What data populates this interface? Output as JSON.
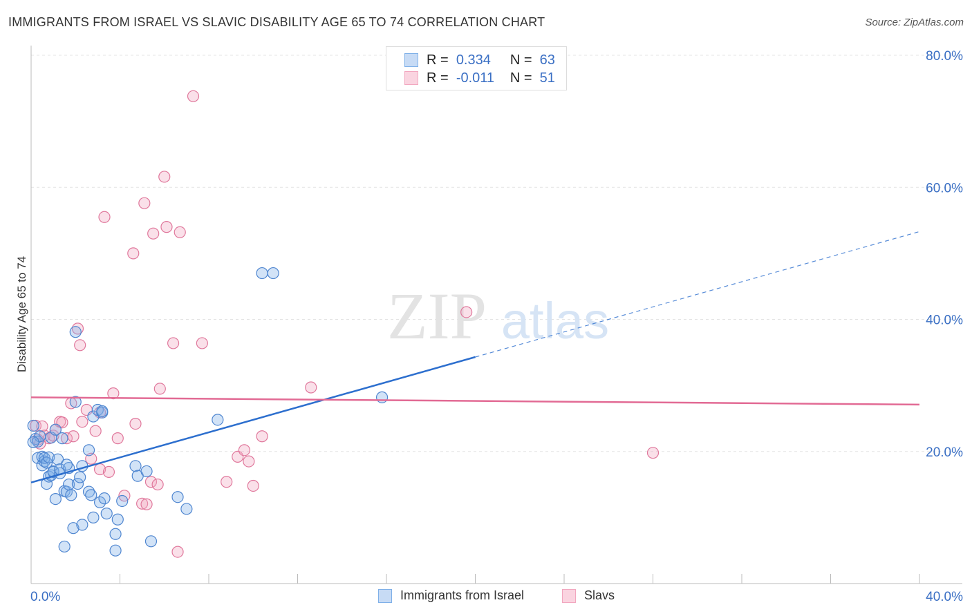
{
  "header": {
    "title": "IMMIGRANTS FROM ISRAEL VS SLAVIC DISABILITY AGE 65 TO 74 CORRELATION CHART",
    "source": "Source: ZipAtlas.com"
  },
  "watermark": {
    "zip": "ZIP",
    "atlas": "atlas"
  },
  "legend_top": [
    {
      "r_label": "R =",
      "r_value": "0.334",
      "n_label": "N =",
      "n_value": "63",
      "color": "#7fb0e8"
    },
    {
      "r_label": "R =",
      "r_value": "-0.011",
      "n_label": "N =",
      "n_value": "51",
      "color": "#f2a7bf"
    }
  ],
  "legend_bottom": [
    {
      "label": "Immigrants from Israel",
      "color": "#7fb0e8"
    },
    {
      "label": "Slavs",
      "color": "#f2a7bf"
    }
  ],
  "chart_data": {
    "type": "scatter",
    "title": "IMMIGRANTS FROM ISRAEL VS SLAVIC DISABILITY AGE 65 TO 74 CORRELATION CHART",
    "xlabel": "",
    "ylabel": "Disability Age 65 to 74",
    "xlim": [
      0,
      40
    ],
    "ylim": [
      0,
      80
    ],
    "x_tick_labels": [
      "0.0%",
      "40.0%"
    ],
    "y_tick_labels": [
      "20.0%",
      "40.0%",
      "60.0%",
      "80.0%"
    ],
    "y_ticks": [
      20,
      40,
      60,
      80
    ],
    "grid": true,
    "legend_position": "top-center",
    "series": [
      {
        "name": "Immigrants from Israel",
        "color": "#7fb0e8",
        "stroke": "#4f86d0",
        "trend": {
          "x0": 0,
          "y0": 15.3,
          "x1": 20,
          "y1": 34.3,
          "dashed_to_x": 40,
          "dashed_to_y": 53.3,
          "color": "#2d6fce"
        },
        "points": [
          [
            0.2,
            21.9
          ],
          [
            0.3,
            21.5
          ],
          [
            0.3,
            19.0
          ],
          [
            0.4,
            22.3
          ],
          [
            0.5,
            19.2
          ],
          [
            0.5,
            17.9
          ],
          [
            0.6,
            18.5
          ],
          [
            0.6,
            19.0
          ],
          [
            0.7,
            15.1
          ],
          [
            0.7,
            18.3
          ],
          [
            0.8,
            16.2
          ],
          [
            0.8,
            19.1
          ],
          [
            0.9,
            22.1
          ],
          [
            0.9,
            16.4
          ],
          [
            1.0,
            17.0
          ],
          [
            1.0,
            16.9
          ],
          [
            1.1,
            12.8
          ],
          [
            1.1,
            23.3
          ],
          [
            1.2,
            18.8
          ],
          [
            1.3,
            16.7
          ],
          [
            1.3,
            17.3
          ],
          [
            1.4,
            22.0
          ],
          [
            1.5,
            14.0
          ],
          [
            1.5,
            5.6
          ],
          [
            1.6,
            13.9
          ],
          [
            1.7,
            15.0
          ],
          [
            1.7,
            17.5
          ],
          [
            1.8,
            13.4
          ],
          [
            1.9,
            8.4
          ],
          [
            2.0,
            38.1
          ],
          [
            2.1,
            15.1
          ],
          [
            2.2,
            16.1
          ],
          [
            2.3,
            17.8
          ],
          [
            2.3,
            8.9
          ],
          [
            2.6,
            20.2
          ],
          [
            2.6,
            13.9
          ],
          [
            2.7,
            13.4
          ],
          [
            2.8,
            25.3
          ],
          [
            2.8,
            10.0
          ],
          [
            3.0,
            26.3
          ],
          [
            3.1,
            12.3
          ],
          [
            3.2,
            25.9
          ],
          [
            3.2,
            26.1
          ],
          [
            3.3,
            12.9
          ],
          [
            3.4,
            10.6
          ],
          [
            3.8,
            7.5
          ],
          [
            3.9,
            9.7
          ],
          [
            3.8,
            5.0
          ],
          [
            4.1,
            12.5
          ],
          [
            4.7,
            17.8
          ],
          [
            4.8,
            16.3
          ],
          [
            5.2,
            17.0
          ],
          [
            5.4,
            6.4
          ],
          [
            6.6,
            13.1
          ],
          [
            7.0,
            11.3
          ],
          [
            8.4,
            24.8
          ],
          [
            10.4,
            47.0
          ],
          [
            10.9,
            47.0
          ],
          [
            15.8,
            28.2
          ],
          [
            0.1,
            23.9
          ],
          [
            0.1,
            21.4
          ],
          [
            2.0,
            27.5
          ],
          [
            1.6,
            18.0
          ]
        ]
      },
      {
        "name": "Slavs",
        "color": "#f2a7bf",
        "stroke": "#e0789c",
        "trend": {
          "x0": 0,
          "y0": 28.2,
          "x1": 40,
          "y1": 27.1,
          "color": "#e26a94"
        },
        "points": [
          [
            0.2,
            23.9
          ],
          [
            0.3,
            21.8
          ],
          [
            0.4,
            21.2
          ],
          [
            0.5,
            23.8
          ],
          [
            0.6,
            22.4
          ],
          [
            0.8,
            22.0
          ],
          [
            1.0,
            22.4
          ],
          [
            1.1,
            23.3
          ],
          [
            1.3,
            24.5
          ],
          [
            1.4,
            24.4
          ],
          [
            1.6,
            22.0
          ],
          [
            1.8,
            27.3
          ],
          [
            1.9,
            22.3
          ],
          [
            2.1,
            38.6
          ],
          [
            2.2,
            36.1
          ],
          [
            2.3,
            24.5
          ],
          [
            2.5,
            26.3
          ],
          [
            2.7,
            18.9
          ],
          [
            2.9,
            23.1
          ],
          [
            3.1,
            25.9
          ],
          [
            3.1,
            17.3
          ],
          [
            3.3,
            55.5
          ],
          [
            3.5,
            16.9
          ],
          [
            3.7,
            28.8
          ],
          [
            3.9,
            22.0
          ],
          [
            4.2,
            13.3
          ],
          [
            4.6,
            50.0
          ],
          [
            4.7,
            24.2
          ],
          [
            5.0,
            12.1
          ],
          [
            5.1,
            57.6
          ],
          [
            5.2,
            12.0
          ],
          [
            5.4,
            15.4
          ],
          [
            5.5,
            53.0
          ],
          [
            5.7,
            15.0
          ],
          [
            5.8,
            29.5
          ],
          [
            6.0,
            61.6
          ],
          [
            6.1,
            54.0
          ],
          [
            6.4,
            36.4
          ],
          [
            6.6,
            4.8
          ],
          [
            6.7,
            53.2
          ],
          [
            7.3,
            73.8
          ],
          [
            7.7,
            36.4
          ],
          [
            8.8,
            15.4
          ],
          [
            9.3,
            19.2
          ],
          [
            9.6,
            20.2
          ],
          [
            9.8,
            18.5
          ],
          [
            10.0,
            14.8
          ],
          [
            10.4,
            22.3
          ],
          [
            12.6,
            29.7
          ],
          [
            19.6,
            41.1
          ],
          [
            28.0,
            19.8
          ]
        ]
      }
    ]
  }
}
